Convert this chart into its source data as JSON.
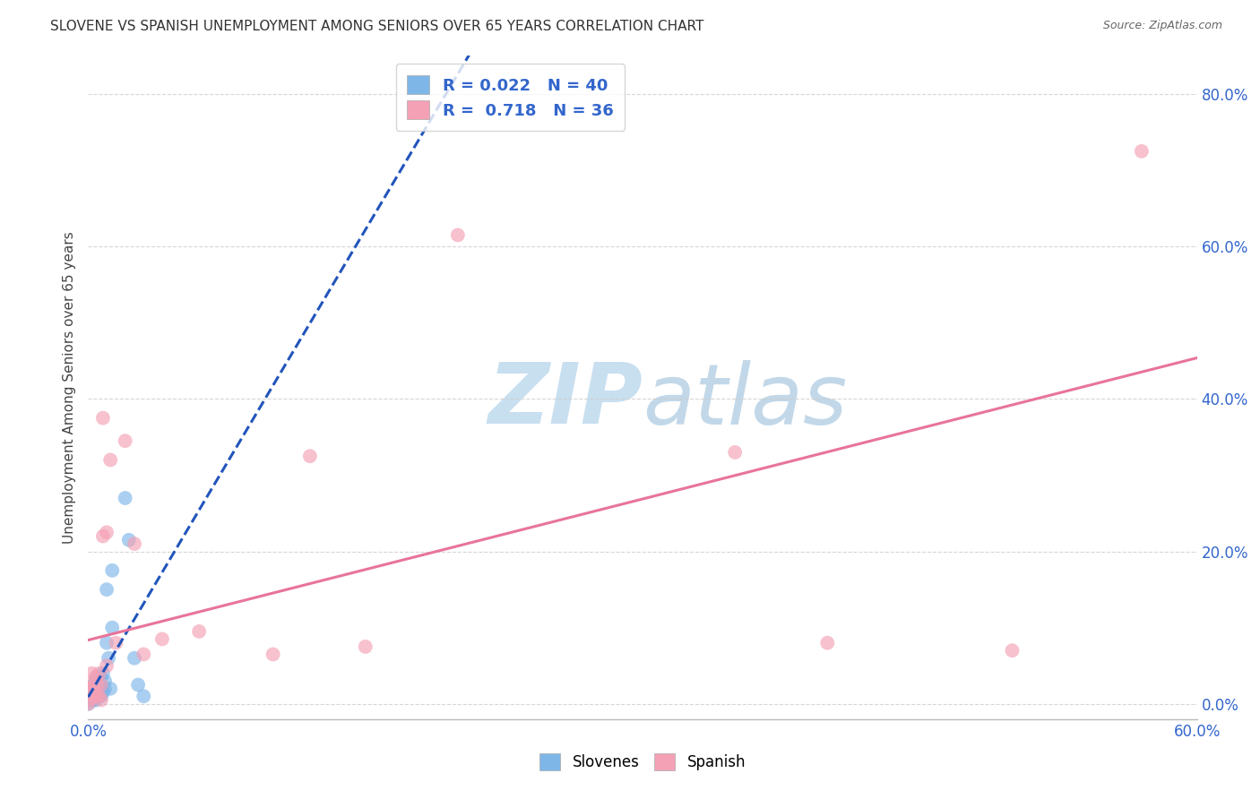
{
  "title": "SLOVENE VS SPANISH UNEMPLOYMENT AMONG SENIORS OVER 65 YEARS CORRELATION CHART",
  "source": "Source: ZipAtlas.com",
  "ylabel_label": "Unemployment Among Seniors over 65 years",
  "xlim": [
    0.0,
    0.6
  ],
  "ylim": [
    -0.02,
    0.85
  ],
  "x_ticks": [
    0.0,
    0.1,
    0.2,
    0.3,
    0.4,
    0.5,
    0.6
  ],
  "x_tick_labels": [
    "0.0%",
    "",
    "",
    "",
    "",
    "",
    "60.0%"
  ],
  "y_ticks_right": [
    0.0,
    0.2,
    0.4,
    0.6,
    0.8
  ],
  "y_tick_labels_right": [
    "0.0%",
    "20.0%",
    "40.0%",
    "60.0%",
    "80.0%"
  ],
  "slovene_color": "#7EB6E8",
  "spanish_color": "#F4A0B5",
  "slovene_line_color": "#2255BB",
  "spanish_line_color": "#E87499",
  "legend_r_slovene": "0.022",
  "legend_n_slovene": "40",
  "legend_r_spanish": "0.718",
  "legend_n_spanish": "36",
  "slovene_x": [
    0.0,
    0.0,
    0.0,
    0.0,
    0.001,
    0.001,
    0.002,
    0.002,
    0.002,
    0.003,
    0.003,
    0.003,
    0.003,
    0.004,
    0.004,
    0.004,
    0.004,
    0.005,
    0.005,
    0.005,
    0.006,
    0.006,
    0.007,
    0.007,
    0.007,
    0.008,
    0.008,
    0.009,
    0.009,
    0.01,
    0.01,
    0.011,
    0.012,
    0.013,
    0.013,
    0.02,
    0.022,
    0.025,
    0.027,
    0.03
  ],
  "slovene_y": [
    0.0,
    0.005,
    0.01,
    0.015,
    0.005,
    0.01,
    0.005,
    0.01,
    0.02,
    0.005,
    0.01,
    0.015,
    0.025,
    0.005,
    0.01,
    0.015,
    0.03,
    0.01,
    0.02,
    0.035,
    0.01,
    0.025,
    0.01,
    0.02,
    0.035,
    0.015,
    0.04,
    0.02,
    0.03,
    0.08,
    0.15,
    0.06,
    0.02,
    0.1,
    0.175,
    0.27,
    0.215,
    0.06,
    0.025,
    0.01
  ],
  "spanish_x": [
    0.0,
    0.0,
    0.001,
    0.001,
    0.002,
    0.002,
    0.002,
    0.003,
    0.003,
    0.004,
    0.004,
    0.005,
    0.005,
    0.006,
    0.006,
    0.007,
    0.007,
    0.008,
    0.008,
    0.01,
    0.01,
    0.012,
    0.015,
    0.02,
    0.025,
    0.03,
    0.04,
    0.06,
    0.1,
    0.12,
    0.15,
    0.2,
    0.35,
    0.4,
    0.5,
    0.57
  ],
  "spanish_y": [
    0.0,
    0.02,
    0.005,
    0.02,
    0.01,
    0.02,
    0.04,
    0.01,
    0.025,
    0.015,
    0.035,
    0.01,
    0.025,
    0.01,
    0.04,
    0.005,
    0.025,
    0.22,
    0.375,
    0.225,
    0.05,
    0.32,
    0.08,
    0.345,
    0.21,
    0.065,
    0.085,
    0.095,
    0.065,
    0.325,
    0.075,
    0.615,
    0.33,
    0.08,
    0.07,
    0.725
  ],
  "background_color": "#FFFFFF",
  "grid_color": "#CCCCCC",
  "watermark_zip": "ZIP",
  "watermark_atlas": "atlas",
  "watermark_color": "#C8DFF0"
}
